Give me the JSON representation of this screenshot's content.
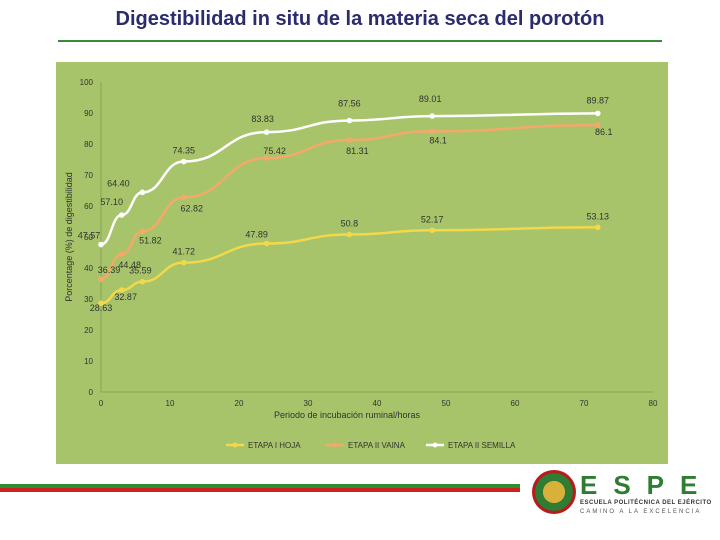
{
  "slide": {
    "title": "Digestibilidad in situ de la materia seca del porotón"
  },
  "chart_data": {
    "type": "line",
    "title": "",
    "xlabel": "Periodo de incubación ruminal/horas",
    "ylabel": "Porcentage (%) de digestibilidad",
    "xlim": [
      0,
      80
    ],
    "ylim": [
      0,
      100
    ],
    "x_ticks": [
      0,
      10,
      20,
      30,
      40,
      50,
      60,
      70,
      80
    ],
    "y_ticks": [
      0,
      10,
      20,
      30,
      40,
      50,
      60,
      70,
      80,
      90,
      100
    ],
    "grid": false,
    "legend_position": "bottom",
    "series": [
      {
        "name": "ETAPA I HOJA",
        "color": "#f2d84a",
        "x": [
          0,
          3,
          6,
          12,
          24,
          36,
          48,
          72
        ],
        "y": [
          28.63,
          32.87,
          35.59,
          41.72,
          47.89,
          50.8,
          52.17,
          53.13
        ],
        "labels": [
          "28.63",
          "32.87",
          "35.59",
          "41.72",
          "47.89",
          "50.8",
          "52.17",
          "53.13"
        ]
      },
      {
        "name": "ETAPA II VAINA",
        "color": "#f4a96b",
        "x": [
          0,
          3,
          6,
          12,
          24,
          36,
          48,
          72
        ],
        "y": [
          36.39,
          44.48,
          51.82,
          62.82,
          75.42,
          81.31,
          84.1,
          86.1
        ],
        "labels": [
          "36.39",
          "44.48",
          "51.82",
          "62.82",
          "75.42",
          "81.31",
          "84.1",
          "86.1"
        ]
      },
      {
        "name": "ETAPA II SEMILLA",
        "color": "#ffffff",
        "x": [
          0,
          3,
          6,
          12,
          24,
          36,
          48,
          72
        ],
        "y": [
          47.57,
          57.1,
          64.4,
          74.35,
          83.83,
          87.56,
          89.01,
          89.87
        ],
        "labels": [
          "47.57",
          "57.10",
          "64.40",
          "74.35",
          "83.83",
          "87.56",
          "89.01",
          "89.87"
        ]
      }
    ]
  },
  "logo": {
    "word": "ESPE",
    "line1": "ESCUELA POLITÉCNICA DEL EJÉRCITO",
    "line2": "CAMINO A LA EXCELENCIA"
  }
}
